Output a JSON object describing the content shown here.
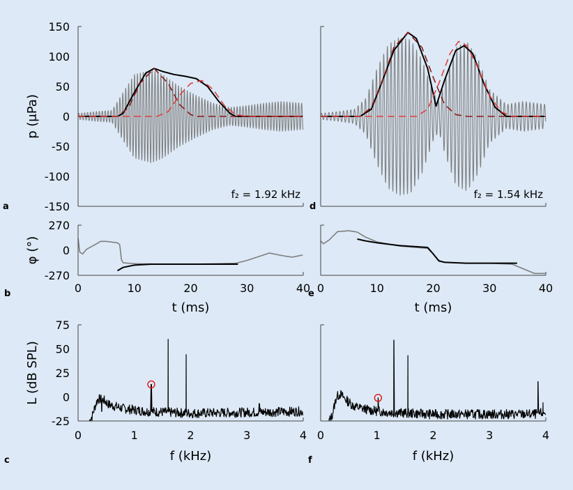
{
  "chart_data": [
    {
      "panel": "a",
      "type": "line",
      "ylabel": "p (μPa)",
      "xlim": [
        0,
        40
      ],
      "ylim": [
        -150,
        150
      ],
      "yticks": [
        "150",
        "100",
        "50",
        "0",
        "-50",
        "-100",
        "-150"
      ],
      "annotation": "f₂ = 1.92 kHz",
      "series": [
        {
          "role": "waveform",
          "color": "#7f7f7f",
          "x": [
            0,
            3,
            6,
            7,
            9,
            10,
            12,
            13,
            15,
            18,
            21,
            24,
            27,
            30,
            33,
            36,
            40
          ],
          "amplitude": [
            5,
            8,
            10,
            25,
            55,
            70,
            75,
            78,
            70,
            50,
            35,
            22,
            15,
            18,
            22,
            25,
            22
          ]
        },
        {
          "role": "envelope",
          "color": "#000000",
          "x": [
            0,
            7,
            8,
            10,
            12,
            13.5,
            15,
            17,
            19,
            21,
            23,
            25,
            27,
            28,
            40
          ],
          "y": [
            0,
            0,
            5,
            40,
            72,
            80,
            75,
            70,
            67,
            63,
            50,
            25,
            5,
            0,
            0
          ]
        },
        {
          "role": "component 1",
          "color": "#8b1a1a",
          "dash": true,
          "x": [
            0,
            7,
            9,
            11,
            13.5,
            16,
            18,
            20,
            21,
            40
          ],
          "y": [
            0,
            0,
            15,
            55,
            80,
            55,
            20,
            3,
            0,
            0
          ]
        },
        {
          "role": "component 2",
          "color": "#e04040",
          "dash": true,
          "x": [
            0,
            14,
            16,
            18,
            20,
            22,
            24,
            26,
            28,
            30,
            40
          ],
          "y": [
            0,
            0,
            8,
            35,
            55,
            60,
            45,
            18,
            3,
            0,
            0
          ]
        }
      ]
    },
    {
      "panel": "d",
      "type": "line",
      "xlim": [
        0,
        40
      ],
      "ylim": [
        -150,
        150
      ],
      "annotation": "f₂ = 1.54 kHz",
      "series": [
        {
          "role": "waveform",
          "color": "#7f7f7f",
          "x": [
            0,
            3,
            6,
            8,
            10,
            12,
            14,
            16,
            18,
            20,
            21,
            22,
            24,
            26,
            28,
            30,
            33,
            36,
            40
          ],
          "amplitude": [
            5,
            8,
            12,
            30,
            80,
            120,
            132,
            128,
            95,
            40,
            25,
            60,
            115,
            125,
            95,
            45,
            20,
            25,
            20
          ]
        },
        {
          "role": "envelope",
          "color": "#000000",
          "x": [
            0,
            7,
            9,
            11,
            13,
            15.5,
            17,
            19,
            20.5,
            22,
            24,
            25.5,
            27,
            29,
            31,
            33,
            40
          ],
          "y": [
            0,
            0,
            12,
            60,
            110,
            140,
            130,
            80,
            17,
            60,
            110,
            118,
            105,
            55,
            15,
            0,
            0
          ]
        },
        {
          "role": "component 1",
          "color": "#8b1a1a",
          "dash": true,
          "x": [
            0,
            7,
            9,
            11,
            13,
            15.5,
            18,
            20,
            22,
            24,
            26,
            40
          ],
          "y": [
            0,
            0,
            15,
            60,
            115,
            140,
            115,
            65,
            20,
            3,
            0,
            0
          ]
        },
        {
          "role": "component 2",
          "color": "#e04040",
          "dash": true,
          "x": [
            0,
            17,
            19,
            21,
            23,
            24.5,
            26,
            28,
            30,
            32,
            34,
            40
          ],
          "y": [
            0,
            0,
            12,
            55,
            105,
            125,
            118,
            80,
            35,
            8,
            0,
            0
          ]
        }
      ]
    },
    {
      "panel": "b",
      "type": "line",
      "ylabel": "φ (°)",
      "xlabel": "t (ms)",
      "xlim": [
        0,
        40
      ],
      "ylim": [
        -270,
        270
      ],
      "xticks": [
        "0",
        "10",
        "20",
        "30",
        "40"
      ],
      "yticks": [
        "270",
        "0",
        "-270"
      ],
      "series": [
        {
          "role": "phase",
          "color": "#7f7f7f",
          "x": [
            0,
            0.3,
            0.8,
            1.5,
            3,
            4,
            5,
            7,
            7.4,
            7.7,
            8,
            10,
            15,
            20,
            25,
            28,
            30,
            32,
            34,
            36,
            38,
            40
          ],
          "y": [
            130,
            -20,
            -40,
            10,
            60,
            95,
            95,
            80,
            60,
            -100,
            -135,
            -145,
            -150,
            -150,
            -145,
            -140,
            -110,
            -70,
            -30,
            -55,
            -75,
            -50
          ]
        },
        {
          "role": "phase fit",
          "color": "#000000",
          "x": [
            7,
            8,
            10,
            13,
            17,
            22,
            28.5
          ],
          "y": [
            -220,
            -185,
            -160,
            -150,
            -150,
            -150,
            -150
          ]
        }
      ]
    },
    {
      "panel": "e",
      "type": "line",
      "xlabel": "t (ms)",
      "xlim": [
        0,
        40
      ],
      "ylim": [
        -270,
        270
      ],
      "xticks": [
        "0",
        "10",
        "20",
        "30",
        "40"
      ],
      "series": [
        {
          "role": "phase",
          "color": "#7f7f7f",
          "x": [
            0,
            0.5,
            1.5,
            3,
            5,
            6.5,
            8,
            10,
            14,
            19,
            20,
            21,
            22,
            26,
            30,
            34,
            36,
            38,
            40
          ],
          "y": [
            100,
            70,
            110,
            200,
            210,
            195,
            140,
            90,
            45,
            20,
            -40,
            -110,
            -130,
            -140,
            -140,
            -150,
            -200,
            -250,
            -250
          ]
        },
        {
          "role": "phase fit",
          "color": "#000000",
          "x": [
            6.5,
            8,
            10,
            14,
            19,
            20,
            21,
            22,
            26,
            30,
            35
          ],
          "y": [
            120,
            100,
            80,
            50,
            30,
            -40,
            -115,
            -130,
            -140,
            -140,
            -140
          ]
        }
      ]
    },
    {
      "panel": "c",
      "type": "line",
      "ylabel": "L (dB SPL)",
      "xlabel": "f (kHz)",
      "xlim": [
        0,
        4
      ],
      "ylim": [
        -25,
        75
      ],
      "xticks": [
        "0",
        "1",
        "2",
        "3",
        "4"
      ],
      "yticks": [
        "75",
        "50",
        "25",
        "0",
        "-25"
      ],
      "series": [
        {
          "role": "spectrum",
          "color": "#000000",
          "noise": [
            [
              0.2,
              -25
            ],
            [
              0.25,
              -20
            ],
            [
              0.3,
              -10
            ],
            [
              0.35,
              -2
            ],
            [
              0.45,
              -3
            ],
            [
              0.55,
              -8
            ],
            [
              0.8,
              -12
            ],
            [
              1.2,
              -15
            ],
            [
              2.0,
              -17
            ],
            [
              3.0,
              -16
            ],
            [
              4.0,
              -15
            ]
          ],
          "peaks": [
            [
              1.3,
              13
            ],
            [
              1.6,
              60
            ],
            [
              1.92,
              44
            ],
            [
              0.42,
              -7
            ],
            [
              3.22,
              -7
            ]
          ]
        }
      ],
      "marker": {
        "x": 1.3,
        "y": 13,
        "color": "#e02020"
      }
    },
    {
      "panel": "f",
      "type": "line",
      "xlabel": "f (kHz)",
      "xlim": [
        0,
        4
      ],
      "ylim": [
        -25,
        75
      ],
      "xticks": [
        "0",
        "1",
        "2",
        "3",
        "4"
      ],
      "series": [
        {
          "role": "spectrum",
          "color": "#000000",
          "noise": [
            [
              0.15,
              -25
            ],
            [
              0.2,
              -20
            ],
            [
              0.28,
              0
            ],
            [
              0.35,
              3
            ],
            [
              0.45,
              -3
            ],
            [
              0.6,
              -10
            ],
            [
              0.9,
              -14
            ],
            [
              1.2,
              -16
            ],
            [
              2.0,
              -18
            ],
            [
              3.0,
              -18
            ],
            [
              3.8,
              -18
            ],
            [
              4.0,
              -16
            ]
          ],
          "peaks": [
            [
              1.02,
              -1
            ],
            [
              1.3,
              59
            ],
            [
              1.55,
              43
            ],
            [
              3.86,
              16
            ],
            [
              3.95,
              -6
            ]
          ]
        }
      ],
      "marker": {
        "x": 1.02,
        "y": -1,
        "color": "#e02020"
      }
    }
  ]
}
